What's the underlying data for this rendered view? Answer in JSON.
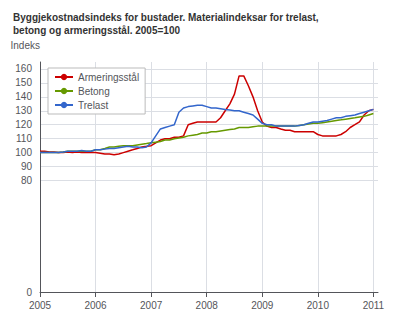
{
  "chart_data": {
    "type": "line",
    "title": "Byggjekostnadsindeks for bustader. Materialindeksar for trelast,\nbetong og armeringsstål. 2005=100",
    "ylabel": "Indeks",
    "x": [
      2005.0,
      2005.083,
      2005.167,
      2005.25,
      2005.333,
      2005.417,
      2005.5,
      2005.583,
      2005.667,
      2005.75,
      2005.833,
      2005.917,
      2006.0,
      2006.083,
      2006.167,
      2006.25,
      2006.333,
      2006.417,
      2006.5,
      2006.583,
      2006.667,
      2006.75,
      2006.833,
      2006.917,
      2007.0,
      2007.083,
      2007.167,
      2007.25,
      2007.333,
      2007.417,
      2007.5,
      2007.583,
      2007.667,
      2007.75,
      2007.833,
      2007.917,
      2008.0,
      2008.083,
      2008.167,
      2008.25,
      2008.333,
      2008.417,
      2008.5,
      2008.583,
      2008.667,
      2008.75,
      2008.833,
      2008.917,
      2009.0,
      2009.083,
      2009.167,
      2009.25,
      2009.333,
      2009.417,
      2009.5,
      2009.583,
      2009.667,
      2009.75,
      2009.833,
      2009.917,
      2010.0,
      2010.083,
      2010.167,
      2010.25,
      2010.333,
      2010.417,
      2010.5,
      2010.583,
      2010.667,
      2010.75,
      2010.833,
      2010.917,
      2011.0
    ],
    "series": [
      {
        "name": "Armeringsstål",
        "color": "#cc0000",
        "values": [
          101,
          101,
          100.5,
          100.5,
          100,
          100,
          100.5,
          100,
          100.5,
          100,
          100,
          100,
          100,
          99.5,
          99,
          99,
          98.5,
          99,
          100,
          101,
          102,
          103,
          104,
          104.5,
          105,
          107,
          109,
          110,
          110,
          111,
          111,
          112,
          120,
          121,
          122,
          122,
          122,
          122,
          122,
          125,
          130,
          135,
          142,
          155,
          155,
          148,
          140,
          130,
          122,
          119,
          118,
          118,
          117,
          116,
          116,
          115,
          115,
          115,
          115,
          115,
          113,
          112,
          112,
          112,
          112,
          113,
          115,
          118,
          120,
          122,
          127,
          130,
          131
        ]
      },
      {
        "name": "Betong",
        "color": "#669900",
        "values": [
          100,
          100,
          100,
          100,
          100,
          100.5,
          101,
          101,
          101,
          101,
          101,
          101,
          102,
          102,
          103,
          104,
          104,
          104.5,
          105,
          105,
          105,
          105.5,
          106,
          106.5,
          107,
          107.5,
          108,
          109,
          109,
          110,
          110.5,
          111,
          112,
          112.5,
          113,
          114,
          114,
          115,
          115,
          115.5,
          116,
          116.5,
          117,
          118,
          118,
          118,
          118.5,
          119,
          119,
          119,
          119,
          119,
          119,
          119,
          119,
          119,
          119.5,
          120,
          120.5,
          121,
          121,
          121.5,
          122,
          122.5,
          123,
          123.5,
          124,
          124.5,
          125,
          125.5,
          126,
          127,
          128
        ]
      },
      {
        "name": "Trelast",
        "color": "#3366cc",
        "values": [
          100,
          100,
          100,
          100,
          100,
          100.5,
          101,
          101,
          101,
          101.5,
          101,
          101,
          102,
          102,
          102.5,
          103,
          103,
          103.5,
          104,
          104.5,
          104,
          104,
          103.5,
          104,
          107,
          112,
          117,
          118,
          119,
          120,
          129,
          132,
          133,
          133.5,
          134,
          134,
          133,
          132,
          132,
          131.5,
          131,
          130.5,
          130,
          130,
          129,
          128,
          127,
          124,
          121,
          120,
          120,
          119,
          119,
          119,
          119,
          119,
          119.5,
          120,
          121,
          122,
          122,
          122.5,
          123,
          124,
          125,
          125,
          126,
          126.5,
          127,
          128,
          129,
          130,
          131
        ]
      }
    ],
    "xlim": [
      2005.0,
      2011.083
    ],
    "xticks": [
      2005,
      2006,
      2007,
      2008,
      2009,
      2010,
      2011
    ],
    "ylim": [
      0,
      165
    ],
    "yticks": [
      0,
      80,
      90,
      100,
      110,
      120,
      130,
      140,
      150,
      160
    ],
    "grid": true,
    "legend": "upper left"
  }
}
